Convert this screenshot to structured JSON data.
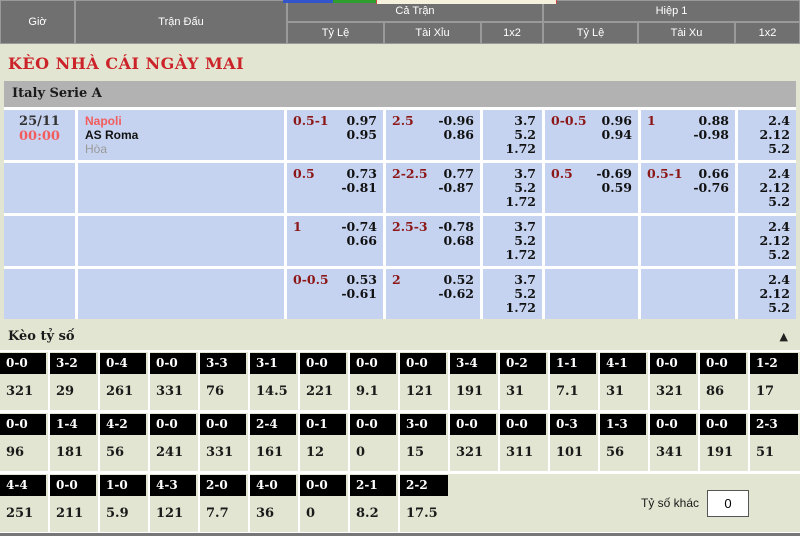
{
  "header": {
    "time_col": "Giờ",
    "match_col": "Trận Đấu",
    "full_time": "Cả Trận",
    "first_half": "Hiệp 1",
    "sub_cols": {
      "ft_rate": "Tỷ Lệ",
      "ft_ou": "Tài Xỉu",
      "ft_1x2": "1x2",
      "h1_rate": "Tỷ Lệ",
      "h1_ou": "Tài Xu",
      "h1_1x2": "1x2"
    }
  },
  "page_title": "KÈO NHÀ CÁI NGÀY MAI",
  "league": "Italy Serie A",
  "match": {
    "date": "25/11",
    "time": "00:00",
    "home": "Napoli",
    "away": "AS Roma",
    "draw": "Hòa"
  },
  "odds_rows": [
    {
      "ft_hdp_hc": "0.5-1",
      "ft_hdp_1": "0.97",
      "ft_hdp_2": "0.95",
      "ft_ou_hc": "2.5",
      "ft_ou_1": "-0.96",
      "ft_ou_2": "0.86",
      "ft_1x2_1": "3.7",
      "ft_1x2_2": "5.2",
      "ft_1x2_3": "1.72",
      "h1_hdp_hc": "0-0.5",
      "h1_hdp_1": "0.96",
      "h1_hdp_2": "0.94",
      "h1_ou_hc": "1",
      "h1_ou_1": "0.88",
      "h1_ou_2": "-0.98",
      "h1_1x2_1": "2.4",
      "h1_1x2_2": "2.12",
      "h1_1x2_3": "5.2"
    },
    {
      "ft_hdp_hc": "0.5",
      "ft_hdp_1": "0.73",
      "ft_hdp_2": "-0.81",
      "ft_ou_hc": "2-2.5",
      "ft_ou_1": "0.77",
      "ft_ou_2": "-0.87",
      "ft_1x2_1": "3.7",
      "ft_1x2_2": "5.2",
      "ft_1x2_3": "1.72",
      "h1_hdp_hc": "0.5",
      "h1_hdp_1": "-0.69",
      "h1_hdp_2": "0.59",
      "h1_ou_hc": "0.5-1",
      "h1_ou_1": "0.66",
      "h1_ou_2": "-0.76",
      "h1_1x2_1": "2.4",
      "h1_1x2_2": "2.12",
      "h1_1x2_3": "5.2"
    },
    {
      "ft_hdp_hc": "1",
      "ft_hdp_1": "-0.74",
      "ft_hdp_2": "0.66",
      "ft_ou_hc": "2.5-3",
      "ft_ou_1": "-0.78",
      "ft_ou_2": "0.68",
      "ft_1x2_1": "3.7",
      "ft_1x2_2": "5.2",
      "ft_1x2_3": "1.72",
      "h1_1x2_1": "2.4",
      "h1_1x2_2": "2.12",
      "h1_1x2_3": "5.2"
    },
    {
      "ft_hdp_hc": "0-0.5",
      "ft_hdp_1": "0.53",
      "ft_hdp_2": "-0.61",
      "ft_ou_hc": "2",
      "ft_ou_1": "0.52",
      "ft_ou_2": "-0.62",
      "ft_1x2_1": "3.7",
      "ft_1x2_2": "5.2",
      "ft_1x2_3": "1.72",
      "h1_1x2_1": "2.4",
      "h1_1x2_2": "2.12",
      "h1_1x2_3": "5.2"
    }
  ],
  "score_section": {
    "title": "Kèo tỷ số",
    "collapse_icon": "▲",
    "row1": [
      {
        "s": "0-0",
        "o": "321"
      },
      {
        "s": "3-2",
        "o": "29"
      },
      {
        "s": "0-4",
        "o": "261"
      },
      {
        "s": "0-0",
        "o": "331"
      },
      {
        "s": "3-3",
        "o": "76"
      },
      {
        "s": "3-1",
        "o": "14.5"
      },
      {
        "s": "0-0",
        "o": "221"
      },
      {
        "s": "0-0",
        "o": "9.1"
      },
      {
        "s": "0-0",
        "o": "121"
      },
      {
        "s": "3-4",
        "o": "191"
      },
      {
        "s": "0-2",
        "o": "31"
      },
      {
        "s": "1-1",
        "o": "7.1"
      },
      {
        "s": "4-1",
        "o": "31"
      },
      {
        "s": "0-0",
        "o": "321"
      },
      {
        "s": "0-0",
        "o": "86"
      },
      {
        "s": "1-2",
        "o": "17"
      }
    ],
    "row2": [
      {
        "s": "0-0",
        "o": "96"
      },
      {
        "s": "1-4",
        "o": "181"
      },
      {
        "s": "4-2",
        "o": "56"
      },
      {
        "s": "0-0",
        "o": "241"
      },
      {
        "s": "0-0",
        "o": "331"
      },
      {
        "s": "2-4",
        "o": "161"
      },
      {
        "s": "0-1",
        "o": "12"
      },
      {
        "s": "0-0",
        "o": "0"
      },
      {
        "s": "3-0",
        "o": "15"
      },
      {
        "s": "0-0",
        "o": "321"
      },
      {
        "s": "0-0",
        "o": "311"
      },
      {
        "s": "0-3",
        "o": "101"
      },
      {
        "s": "1-3",
        "o": "56"
      },
      {
        "s": "0-0",
        "o": "341"
      },
      {
        "s": "0-0",
        "o": "191"
      },
      {
        "s": "2-3",
        "o": "51"
      }
    ],
    "row3": [
      {
        "s": "4-4",
        "o": "251"
      },
      {
        "s": "0-0",
        "o": "211"
      },
      {
        "s": "1-0",
        "o": "5.9"
      },
      {
        "s": "4-3",
        "o": "121"
      },
      {
        "s": "2-0",
        "o": "7.7"
      },
      {
        "s": "4-0",
        "o": "36"
      },
      {
        "s": "0-0",
        "o": "0"
      },
      {
        "s": "2-1",
        "o": "8.2"
      },
      {
        "s": "2-2",
        "o": "17.5"
      }
    ],
    "other_label": "Tỷ số khác",
    "other_value": "0"
  },
  "colors": {
    "header_bg": "#707070",
    "title_red": "#cc2229",
    "league_bar": "#b2b2b2",
    "row_blue": "#c6d3f0",
    "handicap_maroon": "#8c1717",
    "team_red": "#f25c5c",
    "page_bg": "#e2e5d1",
    "score_cell": "#000000"
  }
}
